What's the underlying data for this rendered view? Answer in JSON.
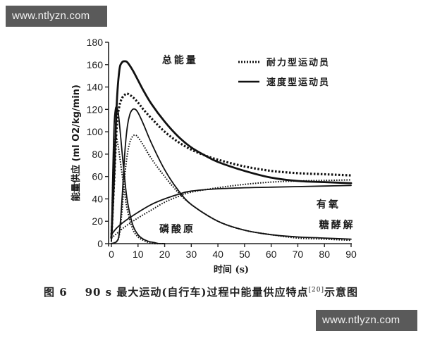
{
  "watermarks": {
    "top": "www.ntlyzn.com",
    "bottom": "www.ntlyzn.com"
  },
  "caption": {
    "figure": "图 6",
    "text": "90 s 最大运动(自行车)过程中能量供应特点",
    "ref": "[20]",
    "suffix": "示意图"
  },
  "colors": {
    "line": "#111111",
    "axis": "#222222",
    "text": "#1a1a1a"
  },
  "chart_data": {
    "type": "line",
    "title": "",
    "xlabel": "时间 (s)",
    "ylabel": "能量供应 (ml O2/kg/min)",
    "xlim": [
      0,
      90
    ],
    "ylim": [
      0,
      180
    ],
    "xticks": [
      0,
      10,
      20,
      30,
      40,
      50,
      60,
      70,
      80,
      90
    ],
    "yticks": [
      0,
      20,
      40,
      60,
      80,
      100,
      120,
      140,
      160,
      180
    ],
    "grid": false,
    "legend": {
      "position": "upper right",
      "entries": [
        {
          "label": "耐力型运动员",
          "style": "dotted"
        },
        {
          "label": "速度型运动员",
          "style": "solid"
        }
      ]
    },
    "annotations": [
      {
        "text": "总能量",
        "x": 19,
        "y": 161
      },
      {
        "text": "磷酸原",
        "x": 18,
        "y": 10
      },
      {
        "text": "有氧",
        "x": 77,
        "y": 32
      },
      {
        "text": "糖酵解",
        "x": 78,
        "y": 14
      }
    ],
    "series": [
      {
        "name": "总能量-速度型运动员",
        "style": "solid",
        "x": [
          0,
          1,
          2,
          3,
          4,
          5,
          6,
          8,
          10,
          12,
          15,
          20,
          25,
          30,
          35,
          40,
          50,
          60,
          70,
          80,
          90
        ],
        "y": [
          5,
          60,
          125,
          155,
          162,
          163,
          162,
          155,
          146,
          137,
          125,
          109,
          96,
          86,
          79,
          73,
          65,
          59,
          56,
          55,
          54
        ]
      },
      {
        "name": "总能量-耐力型运动员",
        "style": "dotted",
        "x": [
          0,
          1,
          2,
          3,
          4,
          5,
          6,
          8,
          10,
          12,
          15,
          20,
          25,
          30,
          35,
          40,
          50,
          60,
          70,
          80,
          90
        ],
        "y": [
          5,
          55,
          105,
          123,
          130,
          133,
          134,
          131,
          126,
          120,
          112,
          100,
          91,
          84,
          79,
          75,
          69,
          65,
          63,
          62,
          61
        ]
      },
      {
        "name": "磷酸原-速度型运动员",
        "style": "solid",
        "x": [
          0,
          0.5,
          1,
          1.5,
          2,
          2.5,
          3,
          4,
          5,
          6,
          8,
          10,
          12,
          14,
          16,
          18,
          20
        ],
        "y": [
          2,
          60,
          105,
          120,
          122,
          118,
          108,
          82,
          58,
          38,
          17,
          8,
          4,
          2,
          1,
          0,
          0
        ]
      },
      {
        "name": "磷酸原-耐力型运动员",
        "style": "dotted",
        "x": [
          0,
          0.5,
          1,
          1.5,
          2,
          2.5,
          3,
          4,
          5,
          6,
          8,
          10,
          12,
          14,
          16,
          18,
          20
        ],
        "y": [
          2,
          55,
          88,
          96,
          94,
          88,
          80,
          62,
          45,
          30,
          13,
          6,
          3,
          1,
          0,
          0,
          0
        ]
      },
      {
        "name": "糖酵解-速度型运动员",
        "style": "solid",
        "x": [
          0,
          2,
          3,
          4,
          5,
          6,
          7,
          8,
          9,
          10,
          12,
          15,
          20,
          25,
          30,
          40,
          50,
          60,
          70,
          80,
          90
        ],
        "y": [
          0,
          2,
          10,
          40,
          80,
          105,
          116,
          120,
          120,
          117,
          107,
          90,
          66,
          48,
          35,
          20,
          12,
          8,
          6,
          5,
          4
        ]
      },
      {
        "name": "糖酵解-耐力型运动员",
        "style": "dotted",
        "x": [
          0,
          2,
          3,
          4,
          5,
          6,
          7,
          8,
          9,
          10,
          12,
          15,
          20,
          25,
          30,
          40,
          50,
          60,
          70,
          80,
          90
        ],
        "y": [
          0,
          2,
          8,
          30,
          60,
          80,
          91,
          96,
          97,
          95,
          88,
          76,
          60,
          46,
          35,
          20,
          12,
          8,
          5,
          4,
          3
        ]
      },
      {
        "name": "有氧-速度型运动员",
        "style": "solid",
        "x": [
          0,
          2,
          5,
          10,
          15,
          20,
          25,
          30,
          40,
          50,
          60,
          70,
          80,
          90
        ],
        "y": [
          8,
          14,
          20,
          28,
          35,
          40,
          44,
          47,
          49,
          50,
          50.5,
          51,
          51.5,
          52
        ]
      },
      {
        "name": "有氧-耐力型运动员",
        "style": "dotted",
        "x": [
          0,
          2,
          5,
          10,
          15,
          20,
          25,
          30,
          40,
          50,
          60,
          70,
          80,
          90
        ],
        "y": [
          5,
          9,
          15,
          23,
          30,
          37,
          42,
          46,
          50,
          53,
          55,
          56,
          56.5,
          57
        ]
      }
    ]
  }
}
